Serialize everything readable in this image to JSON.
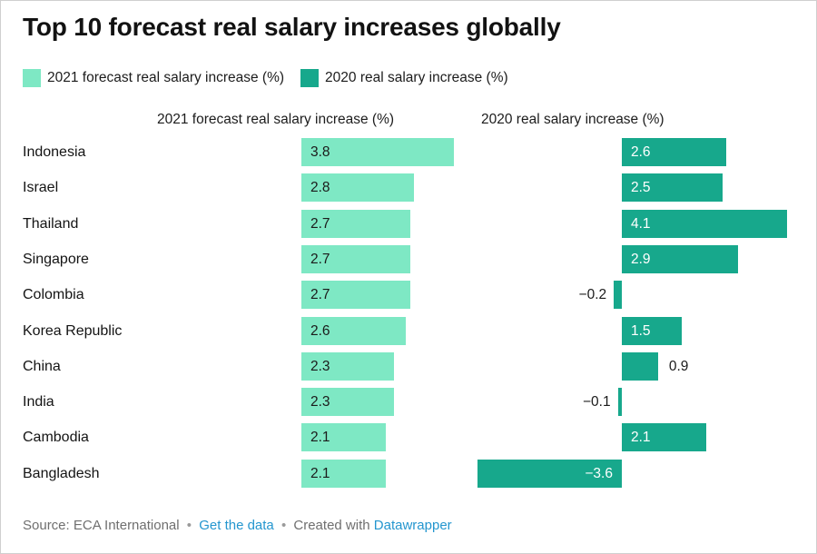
{
  "title": "Top 10 forecast real salary increases globally",
  "colors": {
    "series2021": "#7ee8c4",
    "series2020": "#17a88c",
    "link": "#2496cf",
    "text": "#141414",
    "muted": "#6f6f6f"
  },
  "legend": [
    {
      "label": "2021 forecast real salary increase (%)",
      "color_key": "series2021"
    },
    {
      "label": "2020 real salary increase (%)",
      "color_key": "series2020"
    }
  ],
  "columns": [
    {
      "header": "2021 forecast real salary increase (%)"
    },
    {
      "header": "2020 real salary increase (%)"
    }
  ],
  "chart_data": {
    "type": "bar",
    "layout": "split-bars-horizontal",
    "title": "Top 10 forecast real salary increases globally",
    "categories": [
      "Indonesia",
      "Israel",
      "Thailand",
      "Singapore",
      "Colombia",
      "Korea Republic",
      "China",
      "India",
      "Cambodia",
      "Bangladesh"
    ],
    "series": [
      {
        "name": "2021 forecast real salary increase (%)",
        "color_key": "series2021",
        "values": [
          3.8,
          2.8,
          2.7,
          2.7,
          2.7,
          2.6,
          2.3,
          2.3,
          2.1,
          2.1
        ],
        "labels": [
          "3.8",
          "2.8",
          "2.7",
          "2.7",
          "2.7",
          "2.6",
          "2.3",
          "2.3",
          "2.1",
          "2.1"
        ]
      },
      {
        "name": "2020 real salary increase (%)",
        "color_key": "series2020",
        "values": [
          2.6,
          2.5,
          4.1,
          2.9,
          -0.2,
          1.5,
          0.9,
          -0.1,
          2.1,
          -3.6
        ],
        "labels": [
          "2.6",
          "2.5",
          "4.1",
          "2.9",
          "−0.2",
          "1.5",
          "0.9",
          "−0.1",
          "2.1",
          "−3.6"
        ]
      }
    ],
    "xlim": [
      -3.6,
      4.1
    ],
    "grid": false,
    "legend_position": "top"
  },
  "footer": {
    "source_label": "Source: ECA International",
    "separator": "•",
    "link_get_data": "Get the data",
    "created_with": "Created with",
    "link_datawrapper": "Datawrapper"
  }
}
